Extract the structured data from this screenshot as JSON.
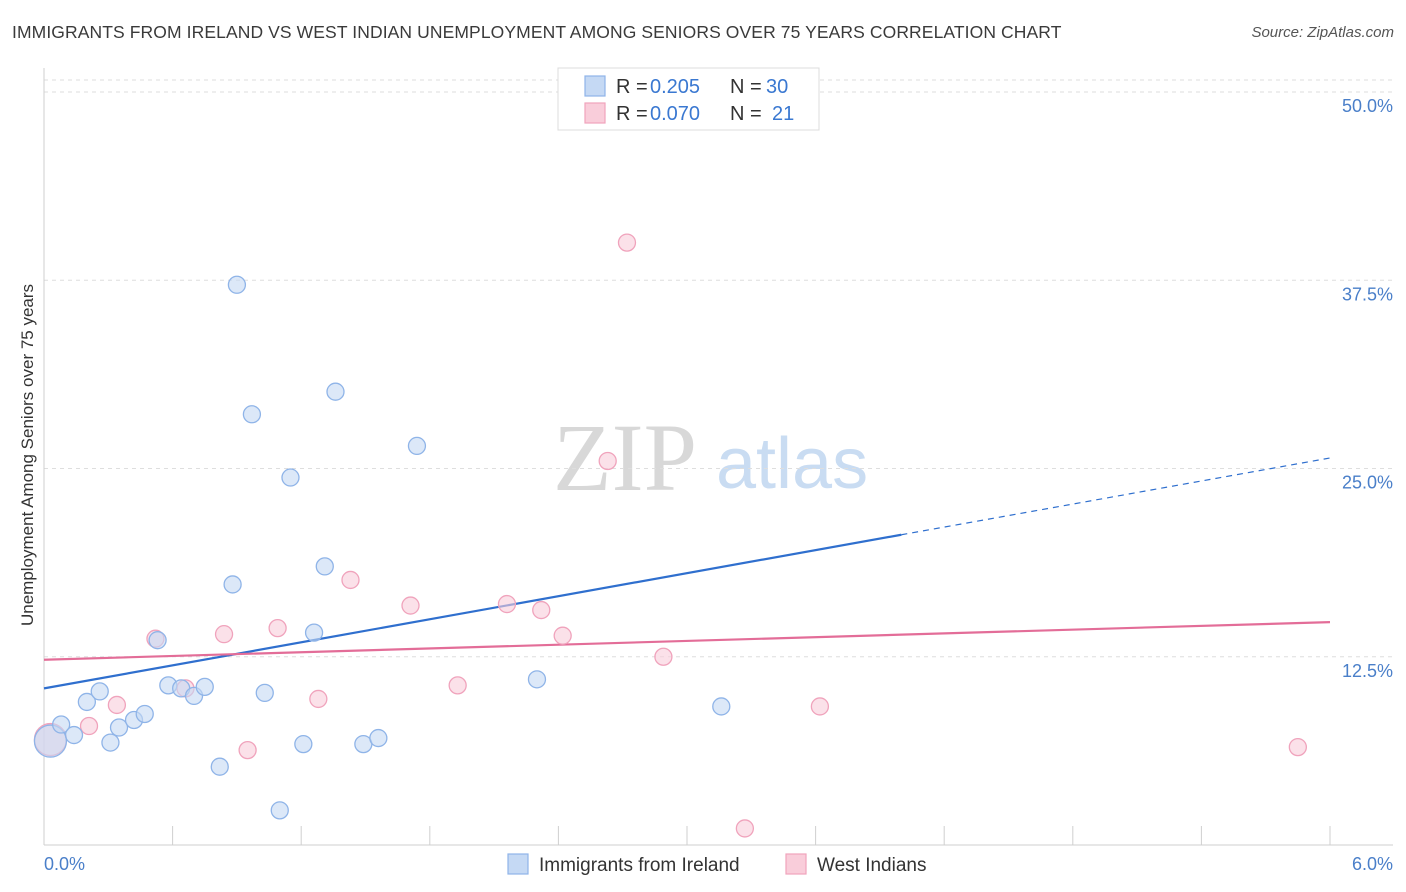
{
  "chart_data": {
    "type": "scatter",
    "title": "IMMIGRANTS FROM IRELAND VS WEST INDIAN UNEMPLOYMENT AMONG SENIORS OVER 75 YEARS CORRELATION CHART",
    "source": "Source: ZipAtlas.com",
    "ylabel": "Unemployment Among Seniors over 75 years",
    "xlim": [
      0,
      6
    ],
    "ylim": [
      0,
      50
    ],
    "x_tick_labels": {
      "min": "0.0%",
      "max": "6.0%"
    },
    "y_ticks": [
      {
        "value": 12.5,
        "label": "12.5%"
      },
      {
        "value": 25,
        "label": "25.0%"
      },
      {
        "value": 37.5,
        "label": "37.5%"
      },
      {
        "value": 50,
        "label": "50.0%"
      }
    ],
    "watermark": {
      "part1": "ZIP",
      "part2": "atlas"
    },
    "legend": [
      {
        "r_label": "R = ",
        "r_value": "0.205",
        "n_label": "N = ",
        "n_value": "30"
      },
      {
        "r_label": "R = ",
        "r_value": "0.070",
        "n_label": "N = ",
        "n_value": "21"
      }
    ],
    "series": [
      {
        "name": "Immigrants from Ireland",
        "color": "#8fb4e8",
        "fill": "#c5d9f4",
        "line_color": "#2f6fce",
        "trend": {
          "x0": 0,
          "y0": 10.4,
          "x1": 4.0,
          "y1": 20.6,
          "dash_to_x": 6.0,
          "dash_to_y": 25.7
        },
        "points": [
          {
            "x": 0.03,
            "y": 6.9,
            "r": 16
          },
          {
            "x": 0.08,
            "y": 8.0
          },
          {
            "x": 0.14,
            "y": 7.3
          },
          {
            "x": 0.2,
            "y": 9.5
          },
          {
            "x": 0.26,
            "y": 10.2
          },
          {
            "x": 0.31,
            "y": 6.8
          },
          {
            "x": 0.35,
            "y": 7.8
          },
          {
            "x": 0.42,
            "y": 8.3
          },
          {
            "x": 0.47,
            "y": 8.7
          },
          {
            "x": 0.53,
            "y": 13.6
          },
          {
            "x": 0.58,
            "y": 10.6
          },
          {
            "x": 0.64,
            "y": 10.4
          },
          {
            "x": 0.7,
            "y": 9.9
          },
          {
            "x": 0.75,
            "y": 10.5
          },
          {
            "x": 0.82,
            "y": 5.2
          },
          {
            "x": 0.88,
            "y": 17.3
          },
          {
            "x": 0.9,
            "y": 37.2
          },
          {
            "x": 0.97,
            "y": 28.6
          },
          {
            "x": 1.03,
            "y": 10.1
          },
          {
            "x": 1.1,
            "y": 2.3
          },
          {
            "x": 1.15,
            "y": 24.4
          },
          {
            "x": 1.21,
            "y": 6.7
          },
          {
            "x": 1.26,
            "y": 14.1
          },
          {
            "x": 1.31,
            "y": 18.5
          },
          {
            "x": 1.36,
            "y": 30.1
          },
          {
            "x": 1.49,
            "y": 6.7
          },
          {
            "x": 1.56,
            "y": 7.1
          },
          {
            "x": 1.74,
            "y": 26.5
          },
          {
            "x": 2.3,
            "y": 11.0
          },
          {
            "x": 3.16,
            "y": 9.2
          }
        ]
      },
      {
        "name": "West Indians",
        "color": "#f0a3bc",
        "fill": "#f9cdda",
        "line_color": "#e36d98",
        "trend": {
          "x0": 0,
          "y0": 12.3,
          "x1": 6.0,
          "y1": 14.8
        },
        "points": [
          {
            "x": 0.03,
            "y": 7.0,
            "r": 16
          },
          {
            "x": 0.21,
            "y": 7.9
          },
          {
            "x": 0.34,
            "y": 9.3
          },
          {
            "x": 0.52,
            "y": 13.7
          },
          {
            "x": 0.66,
            "y": 10.4
          },
          {
            "x": 0.84,
            "y": 14.0
          },
          {
            "x": 0.95,
            "y": 6.3
          },
          {
            "x": 1.09,
            "y": 14.4
          },
          {
            "x": 1.28,
            "y": 9.7
          },
          {
            "x": 1.43,
            "y": 17.6
          },
          {
            "x": 1.71,
            "y": 15.9
          },
          {
            "x": 1.93,
            "y": 10.6
          },
          {
            "x": 2.16,
            "y": 16.0
          },
          {
            "x": 2.32,
            "y": 15.6
          },
          {
            "x": 2.42,
            "y": 13.9
          },
          {
            "x": 2.63,
            "y": 25.5
          },
          {
            "x": 2.72,
            "y": 40.0
          },
          {
            "x": 2.89,
            "y": 12.5
          },
          {
            "x": 3.27,
            "y": 1.1
          },
          {
            "x": 3.62,
            "y": 9.2
          },
          {
            "x": 5.85,
            "y": 6.5
          }
        ]
      }
    ]
  }
}
